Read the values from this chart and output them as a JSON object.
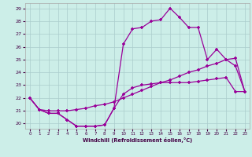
{
  "xlabel": "Windchill (Refroidissement éolien,°C)",
  "background_color": "#cceee8",
  "grid_color": "#aacccc",
  "line_color": "#990099",
  "xlim": [
    -0.5,
    23.5
  ],
  "ylim": [
    19.6,
    29.4
  ],
  "yticks": [
    20,
    21,
    22,
    23,
    24,
    25,
    26,
    27,
    28,
    29
  ],
  "xticks": [
    0,
    1,
    2,
    3,
    4,
    5,
    6,
    7,
    8,
    9,
    10,
    11,
    12,
    13,
    14,
    15,
    16,
    17,
    18,
    19,
    20,
    21,
    22,
    23
  ],
  "line1_x": [
    0,
    1,
    2,
    3,
    4,
    5,
    6,
    7,
    8,
    9,
    10,
    11,
    12,
    13,
    14,
    15,
    16,
    17,
    18,
    19,
    20,
    21,
    22,
    23
  ],
  "line1_y": [
    22.0,
    21.1,
    20.8,
    20.8,
    20.3,
    19.8,
    19.8,
    19.8,
    19.9,
    21.2,
    22.3,
    22.8,
    23.0,
    23.1,
    23.2,
    23.2,
    23.2,
    23.2,
    23.3,
    23.4,
    23.5,
    23.6,
    22.5,
    22.5
  ],
  "line2_x": [
    0,
    1,
    2,
    3,
    4,
    5,
    6,
    7,
    8,
    9,
    10,
    11,
    12,
    13,
    14,
    15,
    16,
    17,
    18,
    19,
    20,
    21,
    22,
    23
  ],
  "line2_y": [
    22.0,
    21.1,
    20.8,
    20.8,
    20.3,
    19.8,
    19.8,
    19.8,
    19.9,
    21.2,
    26.2,
    27.4,
    27.5,
    28.0,
    28.1,
    29.0,
    28.3,
    27.5,
    27.5,
    25.0,
    25.8,
    25.0,
    24.5,
    22.5
  ],
  "line3_x": [
    0,
    1,
    2,
    3,
    4,
    5,
    6,
    7,
    8,
    9,
    10,
    11,
    12,
    13,
    14,
    15,
    16,
    17,
    18,
    19,
    20,
    21,
    22,
    23
  ],
  "line3_y": [
    22.0,
    21.1,
    21.0,
    21.0,
    21.0,
    21.1,
    21.2,
    21.4,
    21.5,
    21.7,
    22.0,
    22.3,
    22.6,
    22.9,
    23.2,
    23.4,
    23.7,
    24.0,
    24.2,
    24.5,
    24.7,
    25.0,
    25.1,
    22.5
  ]
}
